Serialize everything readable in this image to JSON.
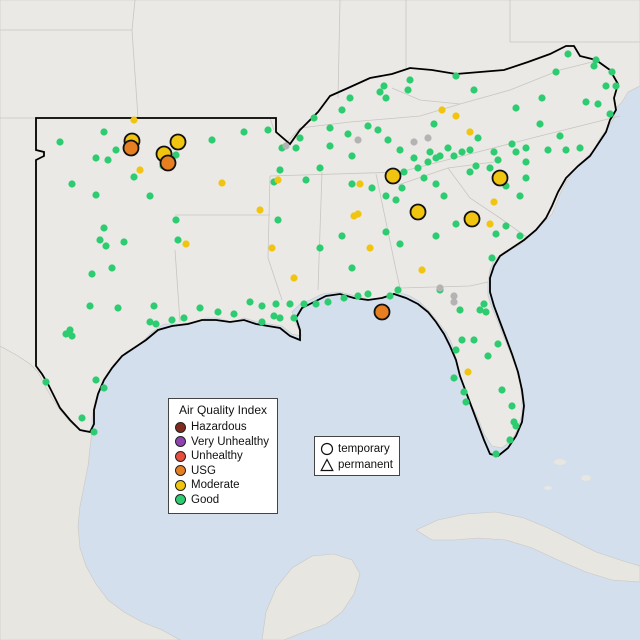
{
  "map": {
    "category_colors": {
      "Hazardous": "#7e2a1e",
      "Very Unhealthy": "#8e44ad",
      "Unhealthy": "#e74c3c",
      "USG": "#e67e22",
      "Moderate": "#f1c40f",
      "Good": "#2ecc71",
      "Unknown": "#b3b3b3"
    }
  },
  "legend_aqi": {
    "title": "Air Quality Index",
    "items": [
      {
        "label": "Hazardous",
        "color": "#7e2a1e"
      },
      {
        "label": "Very Unhealthy",
        "color": "#8e44ad"
      },
      {
        "label": "Unhealthy",
        "color": "#e74c3c"
      },
      {
        "label": "USG",
        "color": "#e67e22"
      },
      {
        "label": "Moderate",
        "color": "#f1c40f"
      },
      {
        "label": "Good",
        "color": "#2ecc71"
      }
    ]
  },
  "legend_type": {
    "items": [
      {
        "label": "temporary",
        "shape": "circle"
      },
      {
        "label": "permanent",
        "shape": "triangle"
      }
    ]
  }
}
